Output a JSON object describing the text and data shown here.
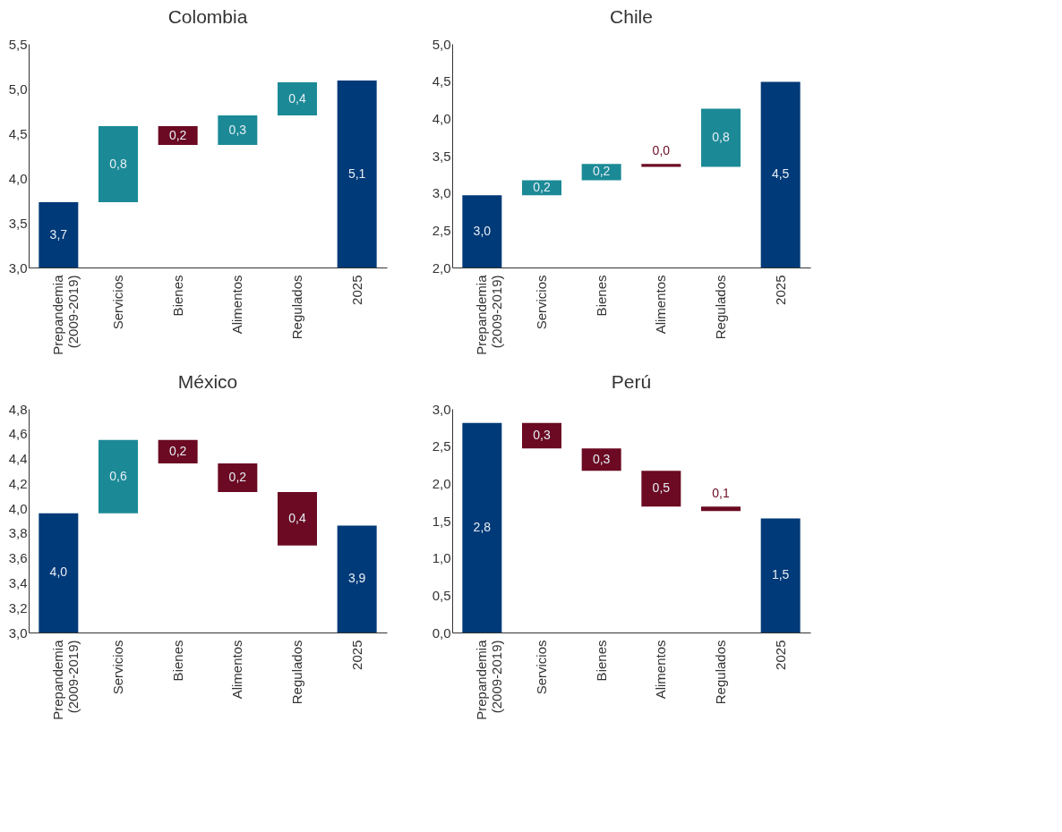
{
  "chart_data": [
    {
      "type": "bar",
      "title": "Colombia",
      "categories": [
        "Prepandemia (2009-2019)",
        "Servicios",
        "Bienes",
        "Alimentos",
        "Regulados",
        "2025"
      ],
      "values": [
        3.73,
        0.85,
        -0.21,
        0.33,
        0.37,
        5.09
      ],
      "base": [
        null,
        3.73,
        4.58,
        4.37,
        4.7,
        null
      ],
      "colors": [
        "#003a78",
        "#1b8a96",
        "#6b0a22",
        "#1b8a96",
        "#1b8a96",
        "#003a78"
      ],
      "value_labels": [
        "3,7",
        "0,8",
        "0,2",
        "0,3",
        "0,4",
        "5,1"
      ],
      "ylim": [
        3.0,
        5.5
      ],
      "yticks": [
        {
          "value": 3.0,
          "label": "3,0"
        },
        {
          "value": 3.5,
          "label": "3,5"
        },
        {
          "value": 4.0,
          "label": "4,0"
        },
        {
          "value": 4.5,
          "label": "4,5"
        },
        {
          "value": 5.0,
          "label": "5,0"
        },
        {
          "value": 5.5,
          "label": "5,5"
        }
      ]
    },
    {
      "type": "bar",
      "title": "Chile",
      "categories": [
        "Prepandemia (2009-2019)",
        "Servicios",
        "Bienes",
        "Alimentos",
        "Regulados",
        "2025"
      ],
      "values": [
        2.97,
        0.2,
        0.22,
        -0.04,
        0.78,
        4.49
      ],
      "base": [
        null,
        2.97,
        3.17,
        3.39,
        3.35,
        null
      ],
      "colors": [
        "#003a78",
        "#1b8a96",
        "#1b8a96",
        "#6b0a22",
        "#1b8a96",
        "#003a78"
      ],
      "value_labels": [
        "3,0",
        "0,2",
        "0,2",
        "0,0",
        "0,8",
        "4,5"
      ],
      "ylim": [
        2.0,
        5.0
      ],
      "yticks": [
        {
          "value": 2.0,
          "label": "2,0"
        },
        {
          "value": 2.5,
          "label": "2,5"
        },
        {
          "value": 3.0,
          "label": "3,0"
        },
        {
          "value": 3.5,
          "label": "3,5"
        },
        {
          "value": 4.0,
          "label": "4,0"
        },
        {
          "value": 4.5,
          "label": "4,5"
        },
        {
          "value": 5.0,
          "label": "5,0"
        }
      ]
    },
    {
      "type": "bar",
      "title": "México",
      "categories": [
        "Prepandemia (2009-2019)",
        "Servicios",
        "Bienes",
        "Alimentos",
        "Regulados",
        "2025"
      ],
      "values": [
        3.96,
        0.59,
        -0.19,
        -0.23,
        -0.43,
        3.86
      ],
      "base": [
        null,
        3.96,
        4.55,
        4.36,
        4.13,
        null
      ],
      "colors": [
        "#003a78",
        "#1b8a96",
        "#6b0a22",
        "#6b0a22",
        "#6b0a22",
        "#003a78"
      ],
      "value_labels": [
        "4,0",
        "0,6",
        "0,2",
        "0,2",
        "0,4",
        "3,9"
      ],
      "ylim": [
        3.0,
        4.8
      ],
      "yticks": [
        {
          "value": 3.0,
          "label": "3,0"
        },
        {
          "value": 3.2,
          "label": "3,2"
        },
        {
          "value": 3.4,
          "label": "3,4"
        },
        {
          "value": 3.6,
          "label": "3,6"
        },
        {
          "value": 3.8,
          "label": "3,8"
        },
        {
          "value": 4.0,
          "label": "4,0"
        },
        {
          "value": 4.2,
          "label": "4,2"
        },
        {
          "value": 4.4,
          "label": "4,4"
        },
        {
          "value": 4.6,
          "label": "4,6"
        },
        {
          "value": 4.8,
          "label": "4,8"
        }
      ]
    },
    {
      "type": "bar",
      "title": "Perú",
      "categories": [
        "Prepandemia (2009-2019)",
        "Servicios",
        "Bienes",
        "Alimentos",
        "Regulados",
        "2025"
      ],
      "values": [
        2.81,
        -0.34,
        -0.3,
        -0.48,
        -0.06,
        1.53
      ],
      "base": [
        null,
        2.81,
        2.47,
        2.17,
        1.69,
        null
      ],
      "colors": [
        "#003a78",
        "#6b0a22",
        "#6b0a22",
        "#6b0a22",
        "#6b0a22",
        "#003a78"
      ],
      "value_labels": [
        "2,8",
        "0,3",
        "0,3",
        "0,5",
        "0,1",
        "1,5"
      ],
      "ylim": [
        0.0,
        3.0
      ],
      "yticks": [
        {
          "value": 0.0,
          "label": "0,0"
        },
        {
          "value": 0.5,
          "label": "0,5"
        },
        {
          "value": 1.0,
          "label": "1,0"
        },
        {
          "value": 1.5,
          "label": "1,5"
        },
        {
          "value": 2.0,
          "label": "2,0"
        },
        {
          "value": 2.5,
          "label": "2,5"
        },
        {
          "value": 3.0,
          "label": "3,0"
        }
      ]
    }
  ]
}
